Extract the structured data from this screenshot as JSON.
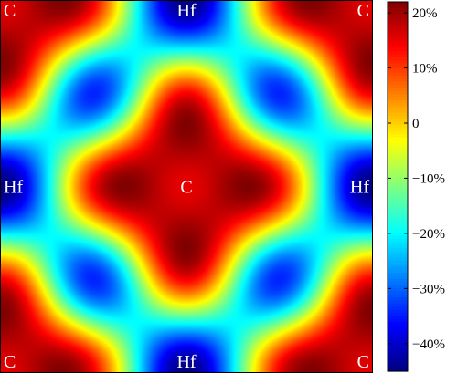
{
  "chart_data": {
    "type": "heatmap",
    "title": "",
    "xlabel": "",
    "ylabel": "",
    "colorscale": "jet",
    "value_range": [
      -45,
      22
    ],
    "colorbar": {
      "ticks": [
        {
          "value": 20,
          "label": "20%"
        },
        {
          "value": 10,
          "label": "10%"
        },
        {
          "value": 0,
          "label": "0"
        },
        {
          "value": -10,
          "label": "−10%"
        },
        {
          "value": -20,
          "label": "−20%"
        },
        {
          "value": -30,
          "label": "−30%"
        },
        {
          "value": -40,
          "label": "−40%"
        }
      ]
    },
    "atom_labels": [
      {
        "label": "C",
        "x": 0,
        "y": 1
      },
      {
        "label": "Hf",
        "x": 0.5,
        "y": 1
      },
      {
        "label": "C",
        "x": 1,
        "y": 1
      },
      {
        "label": "Hf",
        "x": 0,
        "y": 0.5
      },
      {
        "label": "C",
        "x": 0.5,
        "y": 0.5
      },
      {
        "label": "Hf",
        "x": 1,
        "y": 0.5
      },
      {
        "label": "C",
        "x": 0,
        "y": 0
      },
      {
        "label": "Hf",
        "x": 0.5,
        "y": 0
      },
      {
        "label": "C",
        "x": 1,
        "y": 0
      }
    ],
    "features": {
      "max_near": "C",
      "min_near": "Hf"
    }
  }
}
